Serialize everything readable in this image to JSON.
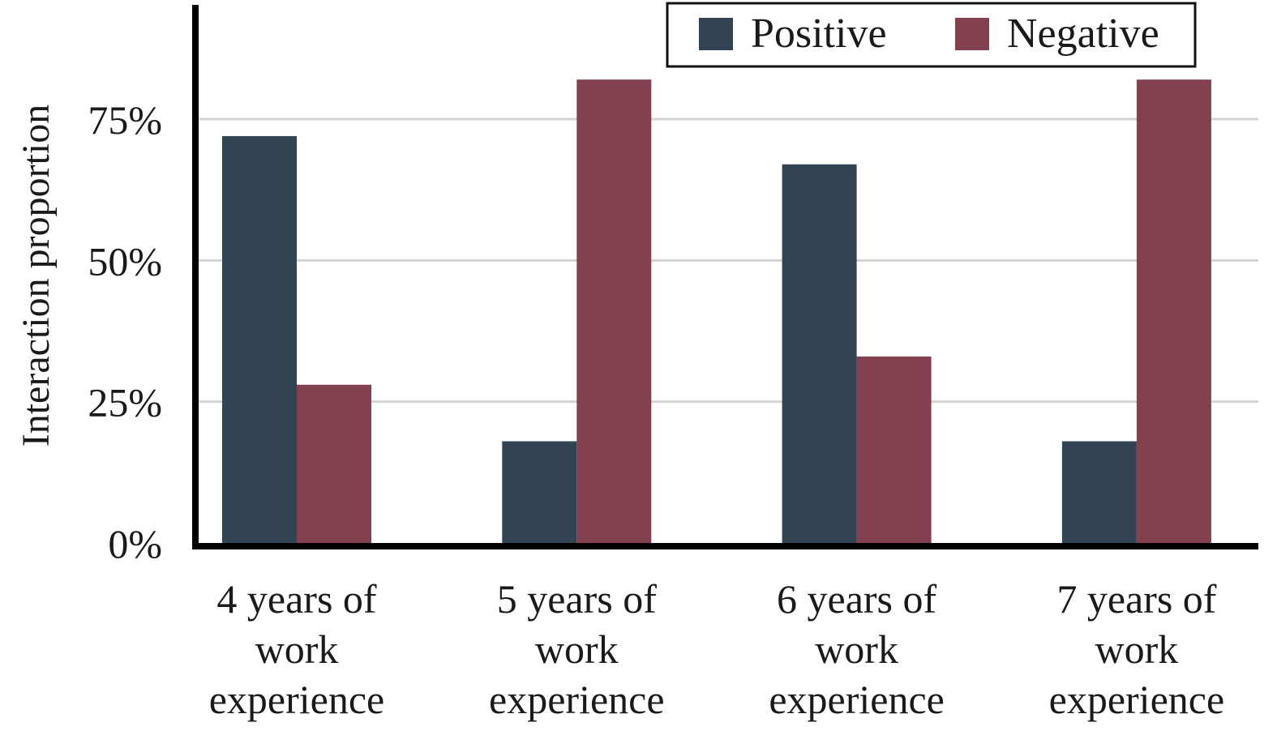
{
  "chart_data": {
    "type": "bar",
    "categories": [
      [
        "4 years of",
        "work",
        "experience"
      ],
      [
        "5 years of",
        "work",
        "experience"
      ],
      [
        "6 years of",
        "work",
        "experience"
      ],
      [
        "7 years of",
        "work",
        "experience"
      ]
    ],
    "series": [
      {
        "name": "Positive",
        "color": "#324454",
        "values": [
          72,
          18,
          67,
          18
        ]
      },
      {
        "name": "Negative",
        "color": "#83404f",
        "values": [
          28,
          82,
          33,
          82
        ]
      }
    ],
    "ylabel": "Interaction proportion",
    "xlabel": "",
    "title": "",
    "ylim": [
      0,
      95
    ],
    "yticks": [
      0,
      25,
      50,
      75
    ],
    "ytick_labels": [
      "0%",
      "25%",
      "50%",
      "75%"
    ],
    "grid": "horizontal",
    "legend_position": "top-right"
  }
}
